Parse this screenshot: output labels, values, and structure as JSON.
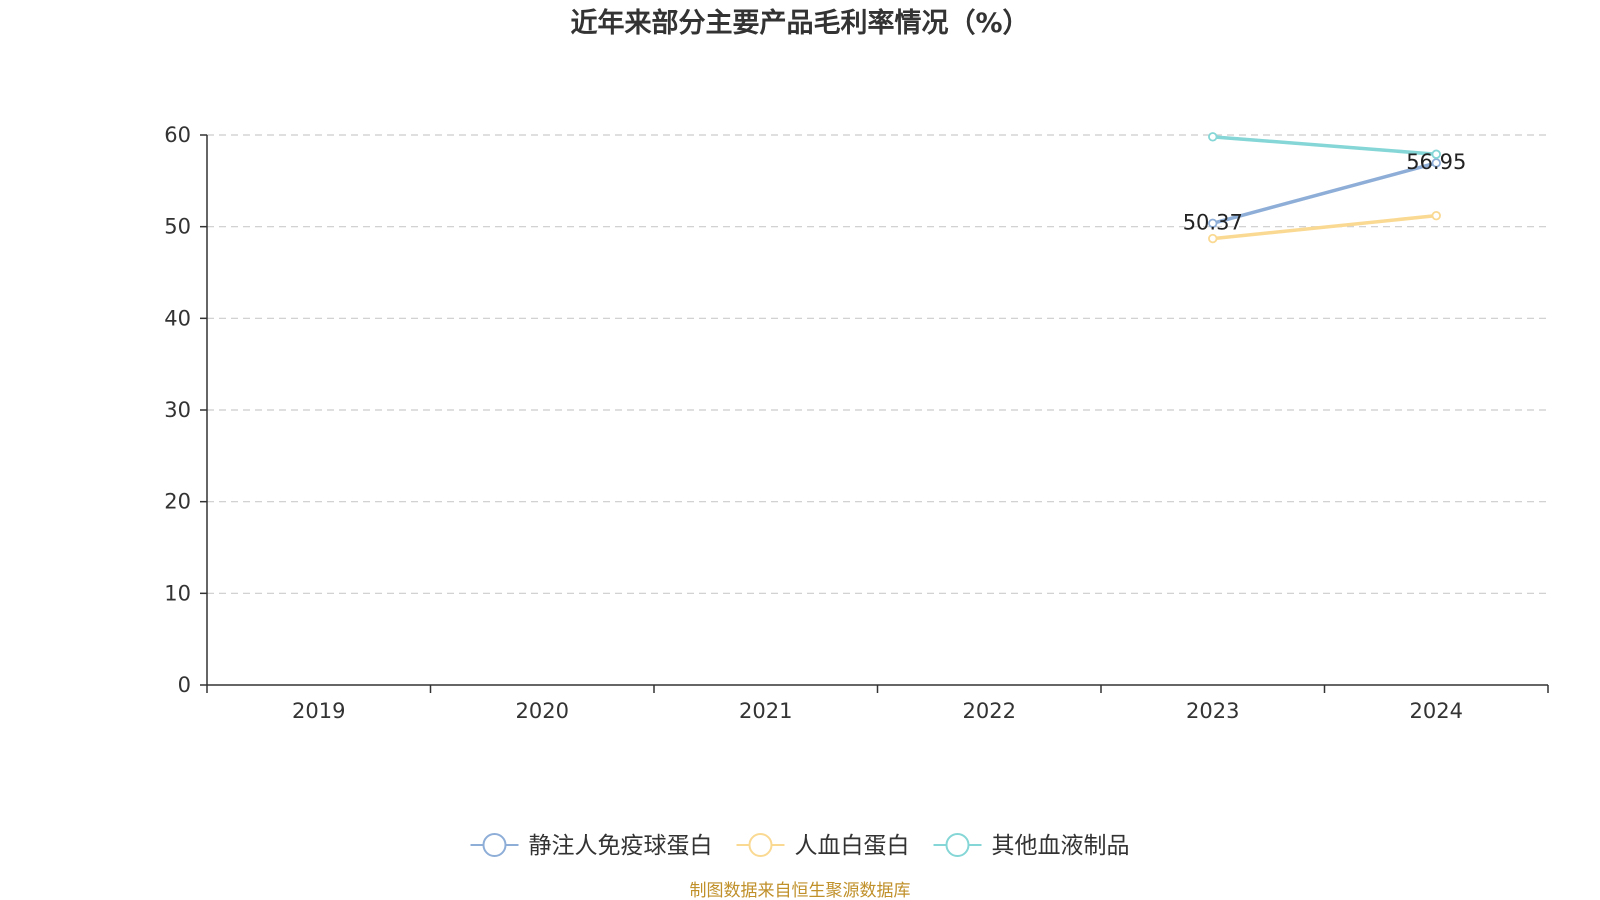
{
  "chart_data": {
    "type": "line",
    "title": "近年来部分主要产品毛利率情况（%）",
    "categories": [
      "2019",
      "2020",
      "2021",
      "2022",
      "2023",
      "2024"
    ],
    "ylim": [
      0,
      60
    ],
    "yticks": [
      0,
      10,
      20,
      30,
      40,
      50,
      60
    ],
    "grid": true,
    "legend_position": "bottom",
    "series": [
      {
        "name": "静注人免疫球蛋白",
        "color": "#8eaed8",
        "values": [
          null,
          null,
          null,
          null,
          50.37,
          56.95
        ],
        "labels": [
          null,
          null,
          null,
          null,
          "50.37",
          "56.95"
        ]
      },
      {
        "name": "人血白蛋白",
        "color": "#fad993",
        "values": [
          null,
          null,
          null,
          null,
          48.7,
          51.2
        ],
        "labels": [
          null,
          null,
          null,
          null,
          null,
          null
        ]
      },
      {
        "name": "其他血液制品",
        "color": "#85d6d6",
        "values": [
          null,
          null,
          null,
          null,
          59.8,
          57.9
        ],
        "labels": [
          null,
          null,
          null,
          null,
          null,
          null
        ]
      }
    ],
    "source": "制图数据来自恒生聚源数据库"
  }
}
